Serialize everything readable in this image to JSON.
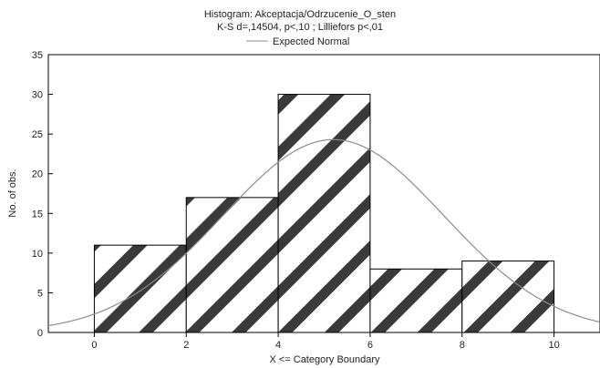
{
  "chart_data": {
    "type": "bar",
    "title": "Histogram: Akceptacja/Odrzucenie_O_sten",
    "subtitle": "K-S d=,14504, p<,10 ; Lilliefors p<,01",
    "legend": {
      "entries": [
        "Expected Normal"
      ],
      "placement": "top"
    },
    "xlabel": "X <= Category Boundary",
    "ylabel": "No. of obs.",
    "xlim": [
      -1,
      11
    ],
    "ylim": [
      0,
      35
    ],
    "x_ticks": [
      "0",
      "2",
      "4",
      "6",
      "8",
      "10"
    ],
    "x_tick_values": [
      0,
      2,
      4,
      6,
      8,
      10
    ],
    "y_ticks": [
      "0",
      "5",
      "10",
      "15",
      "20",
      "25",
      "30",
      "35"
    ],
    "y_tick_values": [
      0,
      5,
      10,
      15,
      20,
      25,
      30,
      35
    ],
    "grid": false,
    "bins": [
      {
        "from": 0,
        "to": 2,
        "value": 11
      },
      {
        "from": 2,
        "to": 4,
        "value": 17
      },
      {
        "from": 4,
        "to": 6,
        "value": 30
      },
      {
        "from": 6,
        "to": 8,
        "value": 8
      },
      {
        "from": 8,
        "to": 10,
        "value": 9
      }
    ],
    "series": [
      {
        "name": "Expected Normal",
        "type": "line",
        "mean": 5.2,
        "sd": 2.4,
        "peak": 24.3
      }
    ],
    "colors": {
      "hatch": "#3a3a3a",
      "bar_fill": "#ffffff",
      "bar_edge": "#000000",
      "curve": "#8c8c8c"
    }
  }
}
